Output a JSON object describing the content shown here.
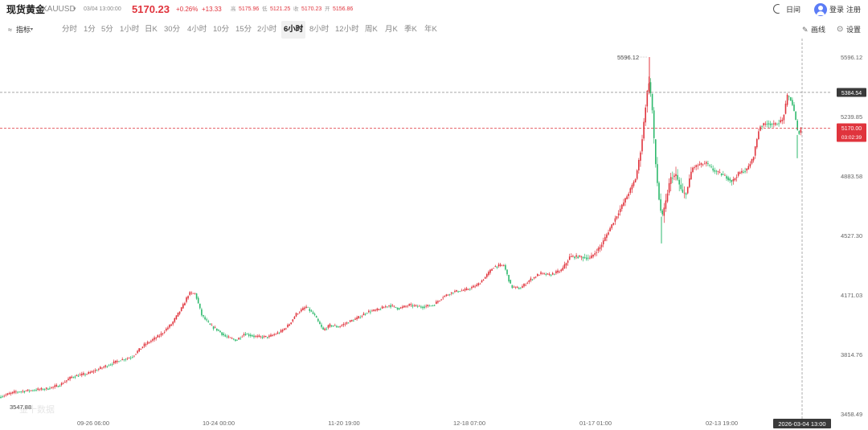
{
  "header": {
    "title": "现货黄金",
    "symbol": "XAUUSD",
    "symbol_caret": "▾",
    "datetime": "03/04 13:00:00",
    "price": "5170.23",
    "price_arrow": "↑",
    "change_pct": "+0.26%",
    "change": "+13.33",
    "quote": [
      {
        "label": "高",
        "value": "5175.96"
      },
      {
        "label": "低",
        "value": "5121.25"
      },
      {
        "label": "收",
        "value": "5170.23"
      },
      {
        "label": "开",
        "value": "5156.86"
      }
    ],
    "day_night": "日间",
    "login": "登录",
    "register": "注册"
  },
  "toolbar": {
    "indicator_label": "指标",
    "indicator_caret": "▾",
    "indicator_icon": "≈",
    "intervals": [
      "分时",
      "1分",
      "5分",
      "1小时",
      "日K",
      "30分",
      "4小时",
      "10分",
      "15分",
      "2小时",
      "6小时",
      "8小时",
      "12小时",
      "周K",
      "月K",
      "季K",
      "年K"
    ],
    "active_interval": "6小时",
    "draw_label": "画线",
    "draw_icon": "✎",
    "settings_label": "设置",
    "settings_icon": "⊙"
  },
  "colors": {
    "up": "#e0343d",
    "down": "#2db96c",
    "accent": "#e0343d",
    "crosshair": "#444444"
  },
  "chart_data": {
    "type": "candlestick",
    "ylim": [
      3458.49,
      5596.12
    ],
    "y_ticks": [
      "5596.12",
      "5239.85",
      "4883.58",
      "4527.30",
      "4171.03",
      "3814.76",
      "3458.49"
    ],
    "x_ticks": [
      "09-26 06:00",
      "10-24 00:00",
      "11-20 19:00",
      "12-18 07:00",
      "01-17 01:00",
      "02-13 19:00"
    ],
    "high_label": "5596.12",
    "low_label": "3547.88",
    "crosshair_price": "5384.54",
    "crosshair_time": "2026-03-04 13:00",
    "last_price": "5170.00",
    "countdown": "03:02:39",
    "grid": false,
    "series_trend": [
      [
        0,
        3560
      ],
      [
        20,
        3590
      ],
      [
        40,
        3600
      ],
      [
        60,
        3610
      ],
      [
        75,
        3630
      ],
      [
        90,
        3680
      ],
      [
        110,
        3700
      ],
      [
        130,
        3740
      ],
      [
        150,
        3780
      ],
      [
        165,
        3800
      ],
      [
        180,
        3870
      ],
      [
        200,
        3930
      ],
      [
        215,
        4000
      ],
      [
        228,
        4100
      ],
      [
        236,
        4180
      ],
      [
        244,
        4180
      ],
      [
        252,
        4050
      ],
      [
        262,
        3990
      ],
      [
        272,
        3960
      ],
      [
        282,
        3920
      ],
      [
        295,
        3900
      ],
      [
        305,
        3940
      ],
      [
        320,
        3920
      ],
      [
        335,
        3920
      ],
      [
        350,
        3950
      ],
      [
        360,
        3990
      ],
      [
        370,
        4060
      ],
      [
        382,
        4100
      ],
      [
        392,
        4050
      ],
      [
        403,
        3960
      ],
      [
        412,
        3990
      ],
      [
        422,
        3980
      ],
      [
        435,
        4010
      ],
      [
        445,
        4030
      ],
      [
        458,
        4070
      ],
      [
        470,
        4080
      ],
      [
        485,
        4110
      ],
      [
        497,
        4090
      ],
      [
        510,
        4110
      ],
      [
        525,
        4100
      ],
      [
        540,
        4110
      ],
      [
        552,
        4160
      ],
      [
        565,
        4190
      ],
      [
        580,
        4200
      ],
      [
        595,
        4230
      ],
      [
        605,
        4280
      ],
      [
        615,
        4340
      ],
      [
        628,
        4350
      ],
      [
        637,
        4220
      ],
      [
        648,
        4210
      ],
      [
        660,
        4260
      ],
      [
        673,
        4300
      ],
      [
        685,
        4290
      ],
      [
        700,
        4320
      ],
      [
        710,
        4400
      ],
      [
        722,
        4400
      ],
      [
        735,
        4390
      ],
      [
        748,
        4460
      ],
      [
        760,
        4570
      ],
      [
        772,
        4680
      ],
      [
        783,
        4780
      ],
      [
        792,
        4870
      ],
      [
        799,
        5060
      ],
      [
        804,
        5290
      ],
      [
        808,
        5460
      ],
      [
        812,
        5330
      ],
      [
        816,
        5000
      ],
      [
        819,
        4840
      ],
      [
        822,
        4700
      ],
      [
        825,
        4640
      ],
      [
        829,
        4720
      ],
      [
        835,
        4870
      ],
      [
        842,
        4890
      ],
      [
        850,
        4780
      ],
      [
        855,
        4780
      ],
      [
        862,
        4930
      ],
      [
        870,
        4950
      ],
      [
        880,
        4960
      ],
      [
        888,
        4920
      ],
      [
        896,
        4900
      ],
      [
        904,
        4880
      ],
      [
        912,
        4850
      ],
      [
        920,
        4900
      ],
      [
        930,
        4920
      ],
      [
        938,
        4990
      ],
      [
        946,
        5180
      ],
      [
        955,
        5200
      ],
      [
        965,
        5190
      ],
      [
        975,
        5220
      ],
      [
        981,
        5370
      ],
      [
        986,
        5330
      ],
      [
        990,
        5250
      ],
      [
        994,
        5130
      ],
      [
        998,
        5170
      ]
    ]
  }
}
